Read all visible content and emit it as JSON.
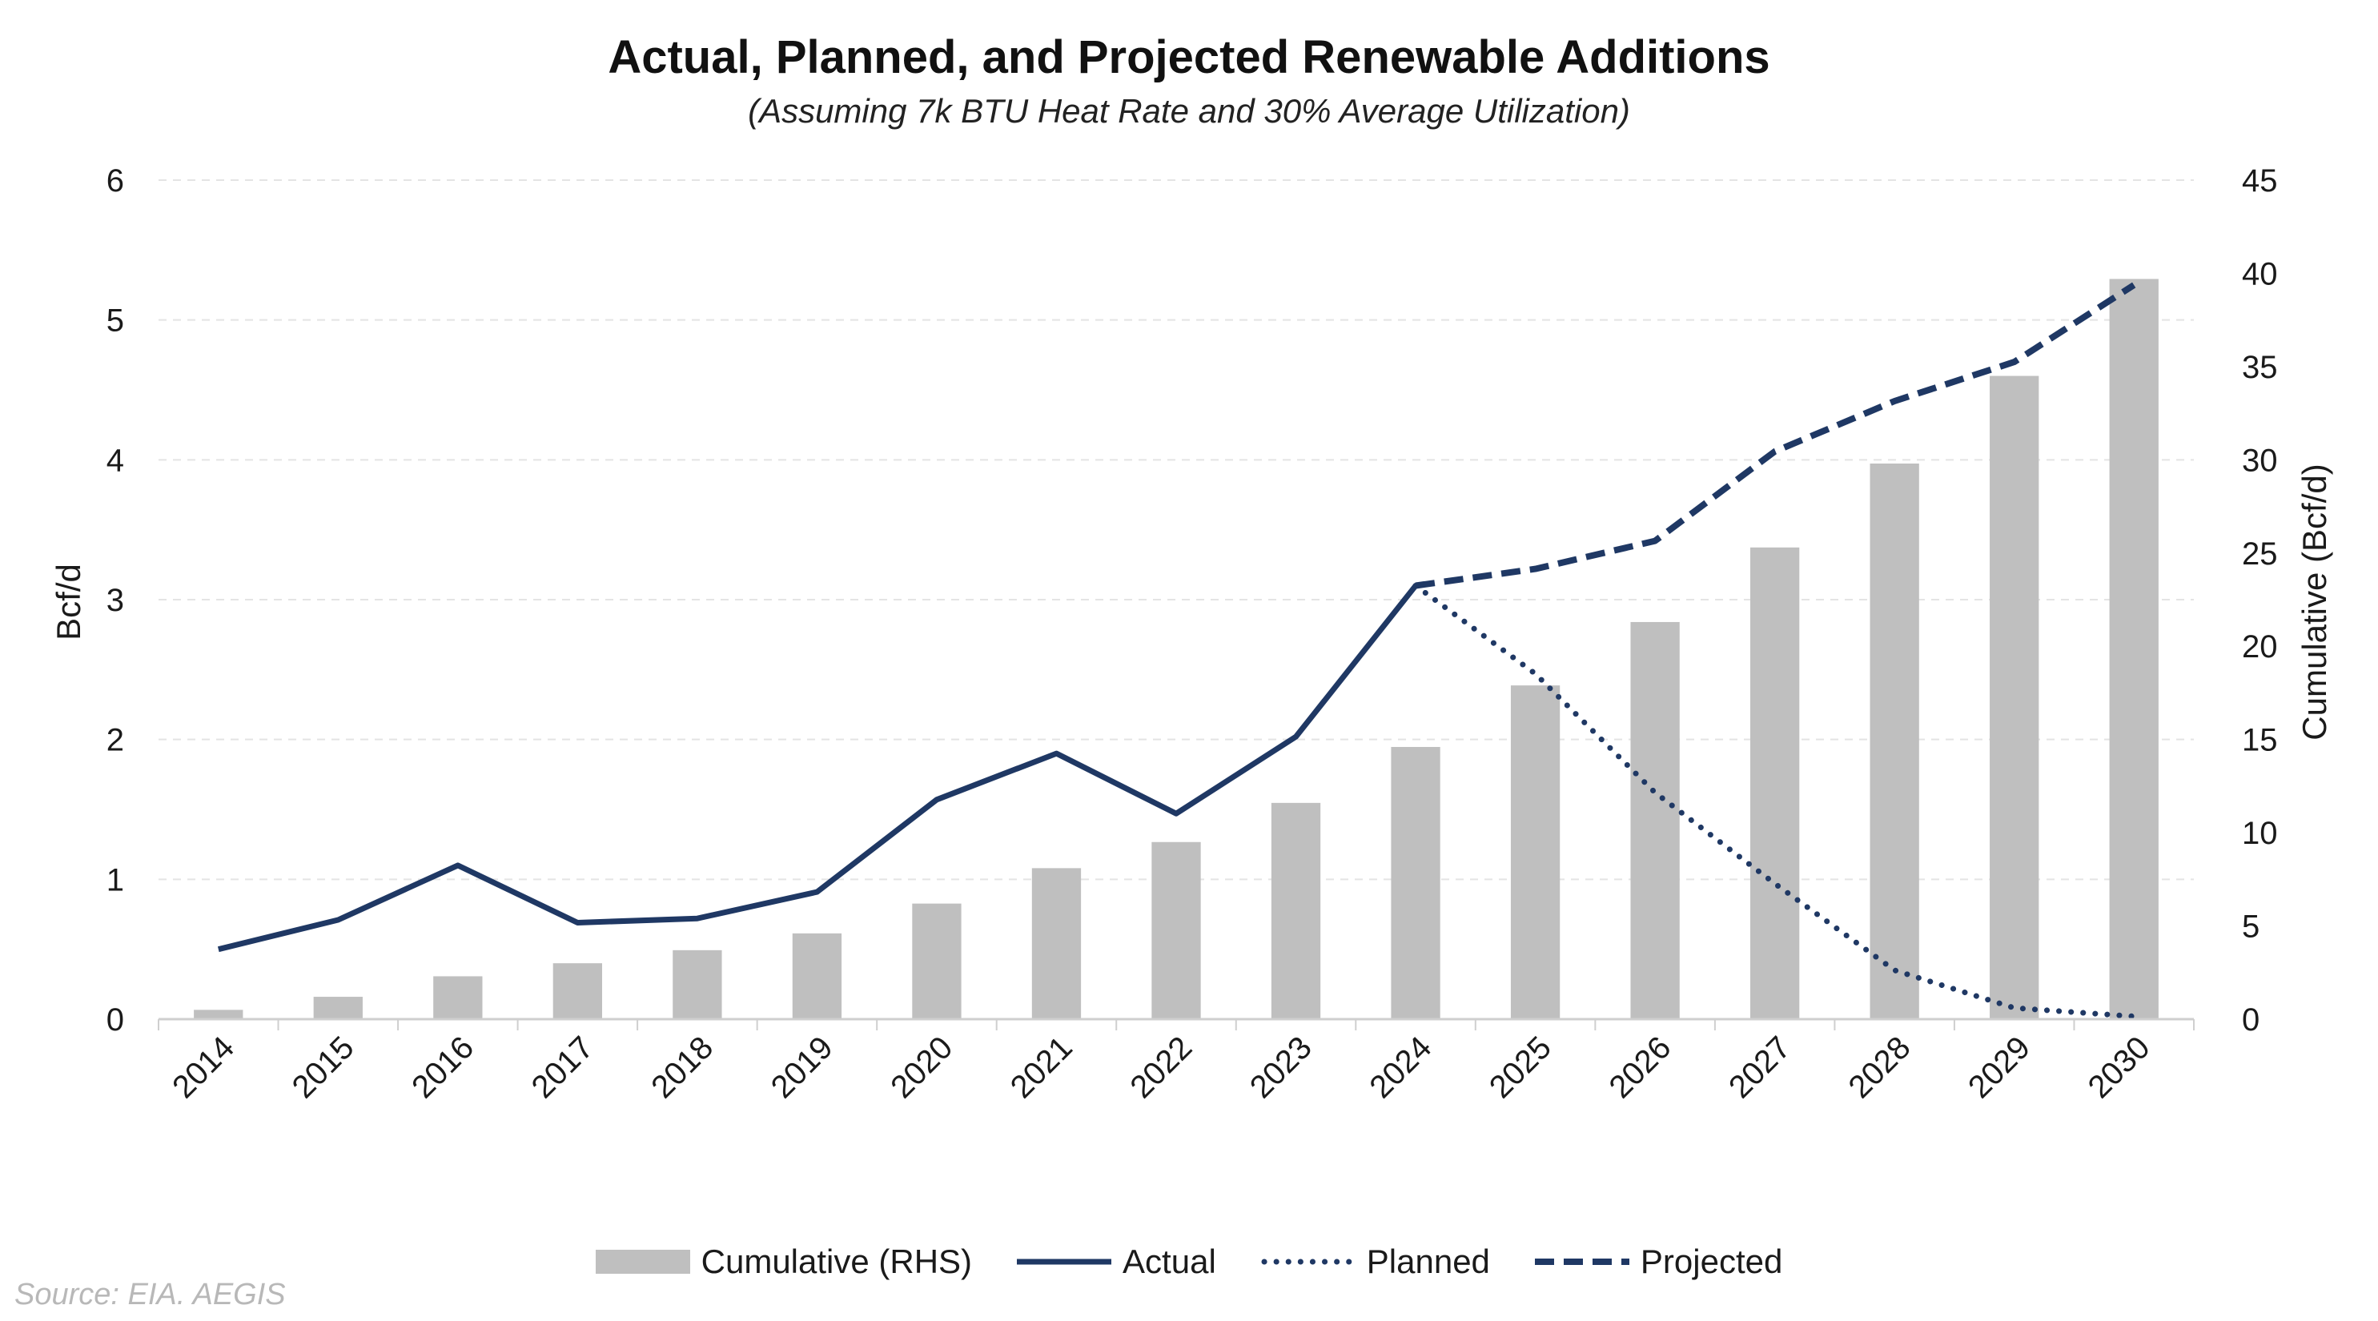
{
  "chart_data": {
    "type": "bar",
    "title": "Actual, Planned, and Projected Renewable Additions",
    "subtitle": "(Assuming 7k BTU Heat Rate and 30% Average Utilization)",
    "categories": [
      "2014",
      "2015",
      "2016",
      "2017",
      "2018",
      "2019",
      "2020",
      "2021",
      "2022",
      "2023",
      "2024",
      "2025",
      "2026",
      "2027",
      "2028",
      "2029",
      "2030"
    ],
    "ylabel": "Bcf/d",
    "ylabel_right": "Cumulative (Bcf/d)",
    "ylim": [
      0,
      6
    ],
    "ylim_right": [
      0,
      45
    ],
    "yticks": [
      0,
      1,
      2,
      3,
      4,
      5,
      6
    ],
    "yticks_right": [
      0,
      5,
      10,
      15,
      20,
      25,
      30,
      35,
      40,
      45
    ],
    "grid": "horizontal dashed",
    "legend_position": "bottom",
    "series": [
      {
        "name": "Cumulative (RHS)",
        "type": "bar",
        "axis": "right",
        "color": "#bfbfbf",
        "values": [
          0.5,
          1.2,
          2.3,
          3.0,
          3.7,
          4.6,
          6.2,
          8.1,
          9.5,
          11.6,
          14.6,
          17.9,
          21.3,
          25.3,
          29.8,
          34.5,
          39.7
        ]
      },
      {
        "name": "Actual",
        "type": "line",
        "style": "solid",
        "axis": "left",
        "color": "#1f3864",
        "x": [
          "2014",
          "2015",
          "2016",
          "2017",
          "2018",
          "2019",
          "2020",
          "2021",
          "2022",
          "2023",
          "2024"
        ],
        "values": [
          0.5,
          0.71,
          1.1,
          0.69,
          0.72,
          0.91,
          1.57,
          1.9,
          1.47,
          2.02,
          3.1
        ]
      },
      {
        "name": "Planned",
        "type": "line",
        "style": "dotted",
        "axis": "left",
        "color": "#1f3864",
        "x": [
          "2024",
          "2025",
          "2026",
          "2027",
          "2028",
          "2029",
          "2030"
        ],
        "values": [
          3.1,
          2.47,
          1.62,
          0.97,
          0.35,
          0.08,
          0.02
        ]
      },
      {
        "name": "Projected",
        "type": "line",
        "style": "dashed",
        "axis": "left",
        "color": "#1f3864",
        "x": [
          "2024",
          "2025",
          "2026",
          "2027",
          "2028",
          "2029",
          "2030"
        ],
        "values": [
          3.1,
          3.22,
          3.42,
          4.06,
          4.42,
          4.7,
          5.25
        ]
      }
    ],
    "source": "Source: EIA. AEGIS"
  },
  "colors": {
    "bar": "#bfbfbf",
    "line": "#1f3864",
    "grid": "#e4e4e4",
    "axis": "#cfcfcf",
    "source_text": "#b8b8b8"
  }
}
